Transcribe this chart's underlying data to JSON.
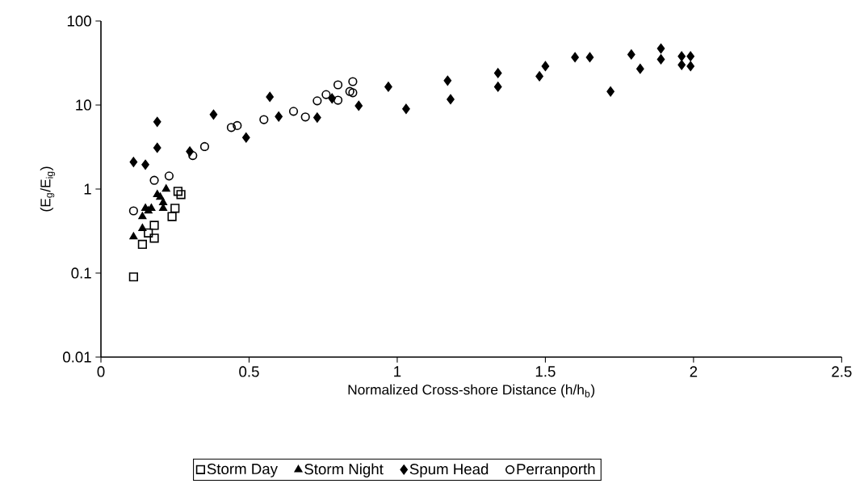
{
  "chart_data": {
    "type": "scatter",
    "xlabel": "Normalized Cross-shore Distance (h/h$_{b}$)",
    "ylabel": "(E$_{g}$/E$_{ig}$)",
    "xlim": [
      0,
      2.5
    ],
    "xticks": [
      0,
      0.5,
      1,
      1.5,
      2,
      2.5
    ],
    "ylim": [
      0.01,
      100
    ],
    "yticks": [
      0.01,
      0.1,
      1,
      10,
      100
    ],
    "log": "y",
    "legend": "bottom",
    "series": [
      {
        "name": "Storm Day",
        "color": "#000000",
        "marker": "square",
        "x": [
          0.11,
          0.14,
          0.16,
          0.18,
          0.18,
          0.24,
          0.25,
          0.26,
          0.27
        ],
        "values": [
          0.09,
          0.22,
          0.3,
          0.37,
          0.26,
          0.47,
          0.59,
          0.94,
          0.86
        ]
      },
      {
        "name": "Storm Night",
        "color": "#000000",
        "marker": "triangle",
        "x": [
          0.11,
          0.14,
          0.14,
          0.15,
          0.16,
          0.17,
          0.19,
          0.2,
          0.21,
          0.22,
          0.21
        ],
        "values": [
          0.27,
          0.34,
          0.47,
          0.59,
          0.55,
          0.59,
          0.86,
          0.8,
          0.69,
          1.0,
          0.59
        ]
      },
      {
        "name": "Spum Head",
        "color": "#000000",
        "marker": "diamond",
        "x": [
          0.11,
          0.15,
          0.19,
          0.19,
          0.3,
          0.38,
          0.49,
          0.57,
          0.6,
          0.73,
          0.78,
          0.87,
          0.97,
          1.03,
          1.17,
          1.18,
          1.34,
          1.34,
          1.48,
          1.5,
          1.6,
          1.65,
          1.72,
          1.79,
          1.82,
          1.89,
          1.89,
          1.96,
          1.99,
          1.96,
          1.99
        ],
        "values": [
          2.1,
          1.95,
          6.3,
          3.1,
          2.8,
          7.7,
          4.1,
          12.5,
          7.3,
          7.1,
          12,
          9.8,
          16.5,
          9,
          19.5,
          11.7,
          24,
          16.5,
          22,
          29,
          37,
          37,
          14.5,
          40,
          27,
          47,
          35,
          38,
          38,
          30,
          29
        ]
      },
      {
        "name": "Perranporth",
        "color": "#000000",
        "marker": "circle",
        "x": [
          0.11,
          0.18,
          0.23,
          0.31,
          0.35,
          0.44,
          0.46,
          0.55,
          0.65,
          0.69,
          0.73,
          0.76,
          0.8,
          0.8,
          0.84,
          0.85,
          0.85
        ],
        "values": [
          0.55,
          1.27,
          1.43,
          2.5,
          3.2,
          5.4,
          5.7,
          6.7,
          8.4,
          7.2,
          11.2,
          13.3,
          17.4,
          11.4,
          14.5,
          19,
          14
        ]
      }
    ]
  }
}
